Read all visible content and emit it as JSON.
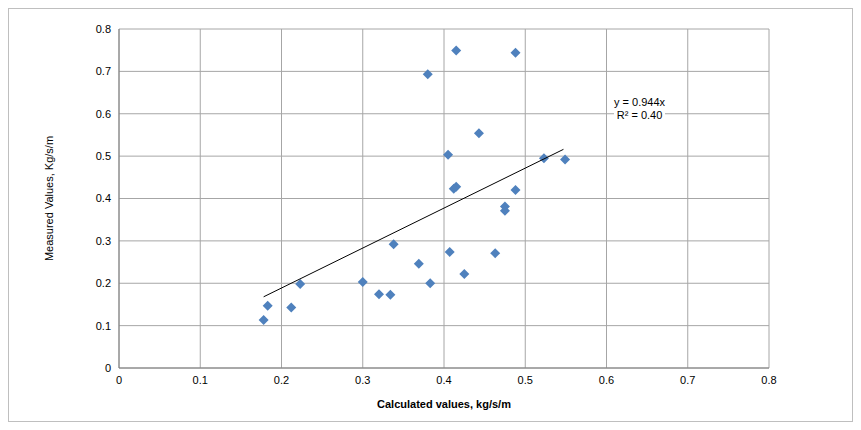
{
  "chart_data": {
    "type": "scatter",
    "x_label": "Calculated values, kg/s/m",
    "y_label": "Measured Values, Kg/s/m",
    "annotations": [
      "y = 0.944x",
      "R² = 0.40"
    ],
    "series": [
      {
        "type": "scatter",
        "color": "#4f81bd",
        "marker": "diamond",
        "x": [
          0.178,
          0.183,
          0.212,
          0.223,
          0.3,
          0.32,
          0.334,
          0.338,
          0.369,
          0.38,
          0.383,
          0.405,
          0.407,
          0.412,
          0.415,
          0.415,
          0.425,
          0.443,
          0.463,
          0.475,
          0.475,
          0.488,
          0.488,
          0.523,
          0.549
        ],
        "values": [
          0.113,
          0.147,
          0.143,
          0.198,
          0.203,
          0.174,
          0.173,
          0.292,
          0.246,
          0.693,
          0.2,
          0.503,
          0.274,
          0.423,
          0.428,
          0.749,
          0.222,
          0.554,
          0.271,
          0.381,
          0.371,
          0.42,
          0.744,
          0.495,
          0.492
        ]
      },
      {
        "type": "line",
        "color": "#000000",
        "line_style": "solid",
        "x": [
          0.178,
          0.547
        ],
        "values": [
          0.168,
          0.516
        ]
      }
    ],
    "xlim": [
      0,
      0.8
    ],
    "ylim": [
      0,
      0.8
    ],
    "xticks": [
      0,
      0.1,
      0.2,
      0.3,
      0.4,
      0.5,
      0.6,
      0.7,
      0.8
    ],
    "yticks": [
      0,
      0.1,
      0.2,
      0.3,
      0.4,
      0.5,
      0.6,
      0.7,
      0.8
    ],
    "grid": true
  }
}
